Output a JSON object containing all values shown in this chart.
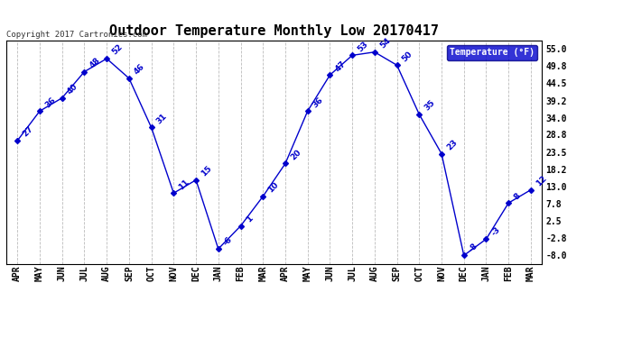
{
  "title": "Outdoor Temperature Monthly Low 20170417",
  "copyright": "Copyright 2017 Cartronics.com",
  "legend_label": "Temperature (°F)",
  "months": [
    "APR",
    "MAY",
    "JUN",
    "JUL",
    "AUG",
    "SEP",
    "OCT",
    "NOV",
    "DEC",
    "JAN",
    "FEB",
    "MAR",
    "APR",
    "MAY",
    "JUN",
    "JUL",
    "AUG",
    "SEP",
    "OCT",
    "NOV",
    "DEC",
    "JAN",
    "FEB",
    "MAR"
  ],
  "values": [
    27,
    36,
    40,
    48,
    52,
    46,
    31,
    11,
    15,
    -6,
    1,
    10,
    20,
    36,
    47,
    53,
    54,
    50,
    35,
    23,
    -8,
    -3,
    8,
    12
  ],
  "yticks": [
    55.0,
    49.8,
    44.5,
    39.2,
    34.0,
    28.8,
    23.5,
    18.2,
    13.0,
    7.8,
    2.5,
    -2.8,
    -8.0
  ],
  "ylim": [
    -10.5,
    57.5
  ],
  "line_color": "#0000cc",
  "marker": "D",
  "marker_size": 3,
  "grid_color": "#bbbbbb",
  "background_color": "#ffffff",
  "legend_bg": "#0000cc",
  "legend_text_color": "#ffffff",
  "title_fontsize": 11,
  "label_fontsize": 6.5,
  "tick_fontsize": 7,
  "copyright_fontsize": 6.5
}
